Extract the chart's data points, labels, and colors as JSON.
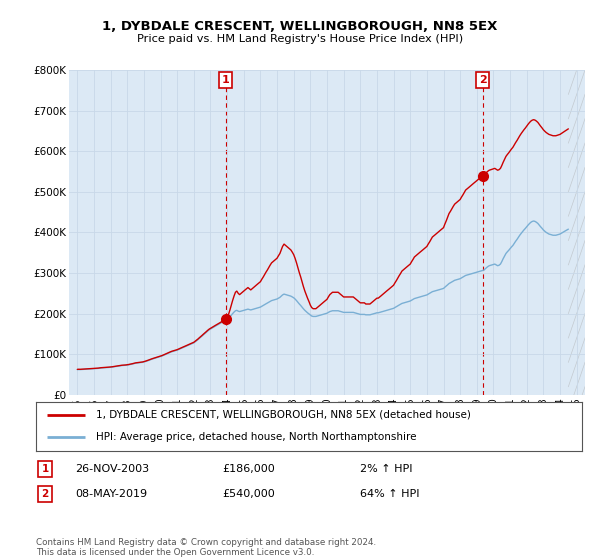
{
  "title": "1, DYBDALE CRESCENT, WELLINGBOROUGH, NN8 5EX",
  "subtitle": "Price paid vs. HM Land Registry's House Price Index (HPI)",
  "legend_line1": "1, DYBDALE CRESCENT, WELLINGBOROUGH, NN8 5EX (detached house)",
  "legend_line2": "HPI: Average price, detached house, North Northamptonshire",
  "annotation1_label": "1",
  "annotation1_date": "26-NOV-2003",
  "annotation1_price": "£186,000",
  "annotation1_hpi": "2% ↑ HPI",
  "annotation2_label": "2",
  "annotation2_date": "08-MAY-2019",
  "annotation2_price": "£540,000",
  "annotation2_hpi": "64% ↑ HPI",
  "footer": "Contains HM Land Registry data © Crown copyright and database right 2024.\nThis data is licensed under the Open Government Licence v3.0.",
  "background_color": "#ffffff",
  "plot_bg_color": "#dce9f5",
  "grid_color": "#c8d8e8",
  "red_line_color": "#cc0000",
  "blue_line_color": "#7aafd4",
  "annotation_vline_color": "#cc0000",
  "sale1_x": 2003.92,
  "sale1_y": 186000,
  "sale2_x": 2019.36,
  "sale2_y": 540000,
  "xlim_start": 1994.5,
  "xlim_end": 2025.5,
  "ylim_min": 0,
  "ylim_max": 800000,
  "yticks": [
    0,
    100000,
    200000,
    300000,
    400000,
    500000,
    600000,
    700000,
    800000
  ],
  "ytick_labels": [
    "£0",
    "£100K",
    "£200K",
    "£300K",
    "£400K",
    "£500K",
    "£600K",
    "£700K",
    "£800K"
  ],
  "xtick_years": [
    1995,
    1996,
    1997,
    1998,
    1999,
    2000,
    2001,
    2002,
    2003,
    2004,
    2005,
    2006,
    2007,
    2008,
    2009,
    2010,
    2011,
    2012,
    2013,
    2014,
    2015,
    2016,
    2017,
    2018,
    2019,
    2020,
    2021,
    2022,
    2023,
    2024,
    2025
  ],
  "hpi_data": [
    [
      1995.0,
      62000
    ],
    [
      1995.08,
      62200
    ],
    [
      1995.17,
      62100
    ],
    [
      1995.25,
      62300
    ],
    [
      1995.33,
      62500
    ],
    [
      1995.42,
      62800
    ],
    [
      1995.5,
      63000
    ],
    [
      1995.58,
      63200
    ],
    [
      1995.67,
      63500
    ],
    [
      1995.75,
      63300
    ],
    [
      1995.83,
      63600
    ],
    [
      1995.92,
      63800
    ],
    [
      1996.0,
      64000
    ],
    [
      1996.08,
      64300
    ],
    [
      1996.17,
      64600
    ],
    [
      1996.25,
      65000
    ],
    [
      1996.33,
      65500
    ],
    [
      1996.42,
      66000
    ],
    [
      1996.5,
      66200
    ],
    [
      1996.58,
      66500
    ],
    [
      1996.67,
      66800
    ],
    [
      1996.75,
      67000
    ],
    [
      1996.83,
      67200
    ],
    [
      1996.92,
      67500
    ],
    [
      1997.0,
      67800
    ],
    [
      1997.08,
      68200
    ],
    [
      1997.17,
      68800
    ],
    [
      1997.25,
      69500
    ],
    [
      1997.33,
      70000
    ],
    [
      1997.42,
      70500
    ],
    [
      1997.5,
      71000
    ],
    [
      1997.58,
      71500
    ],
    [
      1997.67,
      72000
    ],
    [
      1997.75,
      72200
    ],
    [
      1997.83,
      72500
    ],
    [
      1997.92,
      72800
    ],
    [
      1998.0,
      73200
    ],
    [
      1998.08,
      73800
    ],
    [
      1998.17,
      74500
    ],
    [
      1998.25,
      75200
    ],
    [
      1998.33,
      76000
    ],
    [
      1998.42,
      77000
    ],
    [
      1998.5,
      77800
    ],
    [
      1998.58,
      78200
    ],
    [
      1998.67,
      78600
    ],
    [
      1998.75,
      79000
    ],
    [
      1998.83,
      79500
    ],
    [
      1998.92,
      80000
    ],
    [
      1999.0,
      80800
    ],
    [
      1999.08,
      81800
    ],
    [
      1999.17,
      83000
    ],
    [
      1999.25,
      84200
    ],
    [
      1999.33,
      85500
    ],
    [
      1999.42,
      87000
    ],
    [
      1999.5,
      88000
    ],
    [
      1999.58,
      89000
    ],
    [
      1999.67,
      90000
    ],
    [
      1999.75,
      91000
    ],
    [
      1999.83,
      92000
    ],
    [
      1999.92,
      93000
    ],
    [
      2000.0,
      94000
    ],
    [
      2000.08,
      95500
    ],
    [
      2000.17,
      97000
    ],
    [
      2000.25,
      98500
    ],
    [
      2000.33,
      100000
    ],
    [
      2000.42,
      101500
    ],
    [
      2000.5,
      103000
    ],
    [
      2000.58,
      104500
    ],
    [
      2000.67,
      106000
    ],
    [
      2000.75,
      107000
    ],
    [
      2000.83,
      108000
    ],
    [
      2000.92,
      109000
    ],
    [
      2001.0,
      110000
    ],
    [
      2001.08,
      111500
    ],
    [
      2001.17,
      113000
    ],
    [
      2001.25,
      114500
    ],
    [
      2001.33,
      116000
    ],
    [
      2001.42,
      117500
    ],
    [
      2001.5,
      119000
    ],
    [
      2001.58,
      120500
    ],
    [
      2001.67,
      122000
    ],
    [
      2001.75,
      123500
    ],
    [
      2001.83,
      125000
    ],
    [
      2001.92,
      126500
    ],
    [
      2002.0,
      128000
    ],
    [
      2002.08,
      130500
    ],
    [
      2002.17,
      133000
    ],
    [
      2002.25,
      136000
    ],
    [
      2002.33,
      139000
    ],
    [
      2002.42,
      142000
    ],
    [
      2002.5,
      145000
    ],
    [
      2002.58,
      148000
    ],
    [
      2002.67,
      151000
    ],
    [
      2002.75,
      154000
    ],
    [
      2002.83,
      157000
    ],
    [
      2002.92,
      160000
    ],
    [
      2003.0,
      162000
    ],
    [
      2003.08,
      164000
    ],
    [
      2003.17,
      166000
    ],
    [
      2003.25,
      168000
    ],
    [
      2003.33,
      170000
    ],
    [
      2003.42,
      172000
    ],
    [
      2003.5,
      174000
    ],
    [
      2003.58,
      176000
    ],
    [
      2003.67,
      178000
    ],
    [
      2003.75,
      180000
    ],
    [
      2003.83,
      182000
    ],
    [
      2003.92,
      184000
    ],
    [
      2004.0,
      186000
    ],
    [
      2004.08,
      188000
    ],
    [
      2004.17,
      192000
    ],
    [
      2004.25,
      196000
    ],
    [
      2004.33,
      200000
    ],
    [
      2004.42,
      204000
    ],
    [
      2004.5,
      207000
    ],
    [
      2004.58,
      208000
    ],
    [
      2004.67,
      206000
    ],
    [
      2004.75,
      205000
    ],
    [
      2004.83,
      206000
    ],
    [
      2004.92,
      207000
    ],
    [
      2005.0,
      208000
    ],
    [
      2005.08,
      209000
    ],
    [
      2005.17,
      210000
    ],
    [
      2005.25,
      211000
    ],
    [
      2005.33,
      210000
    ],
    [
      2005.42,
      209000
    ],
    [
      2005.5,
      210000
    ],
    [
      2005.58,
      211000
    ],
    [
      2005.67,
      212000
    ],
    [
      2005.75,
      213000
    ],
    [
      2005.83,
      214000
    ],
    [
      2005.92,
      215000
    ],
    [
      2006.0,
      216000
    ],
    [
      2006.08,
      218000
    ],
    [
      2006.17,
      220000
    ],
    [
      2006.25,
      222000
    ],
    [
      2006.33,
      224000
    ],
    [
      2006.42,
      226000
    ],
    [
      2006.5,
      228000
    ],
    [
      2006.58,
      230000
    ],
    [
      2006.67,
      232000
    ],
    [
      2006.75,
      233000
    ],
    [
      2006.83,
      234000
    ],
    [
      2006.92,
      235000
    ],
    [
      2007.0,
      236000
    ],
    [
      2007.08,
      238000
    ],
    [
      2007.17,
      240000
    ],
    [
      2007.25,
      243000
    ],
    [
      2007.33,
      246000
    ],
    [
      2007.42,
      248000
    ],
    [
      2007.5,
      247000
    ],
    [
      2007.58,
      246000
    ],
    [
      2007.67,
      245000
    ],
    [
      2007.75,
      244000
    ],
    [
      2007.83,
      243000
    ],
    [
      2007.92,
      241000
    ],
    [
      2008.0,
      239000
    ],
    [
      2008.08,
      236000
    ],
    [
      2008.17,
      232000
    ],
    [
      2008.25,
      228000
    ],
    [
      2008.33,
      224000
    ],
    [
      2008.42,
      220000
    ],
    [
      2008.5,
      216000
    ],
    [
      2008.58,
      212000
    ],
    [
      2008.67,
      208000
    ],
    [
      2008.75,
      205000
    ],
    [
      2008.83,
      202000
    ],
    [
      2008.92,
      199000
    ],
    [
      2009.0,
      196000
    ],
    [
      2009.08,
      194000
    ],
    [
      2009.17,
      193000
    ],
    [
      2009.25,
      193000
    ],
    [
      2009.33,
      193000
    ],
    [
      2009.42,
      194000
    ],
    [
      2009.5,
      195000
    ],
    [
      2009.58,
      196000
    ],
    [
      2009.67,
      197000
    ],
    [
      2009.75,
      198000
    ],
    [
      2009.83,
      199000
    ],
    [
      2009.92,
      200000
    ],
    [
      2010.0,
      201000
    ],
    [
      2010.08,
      203000
    ],
    [
      2010.17,
      205000
    ],
    [
      2010.25,
      206000
    ],
    [
      2010.33,
      207000
    ],
    [
      2010.42,
      207000
    ],
    [
      2010.5,
      207000
    ],
    [
      2010.58,
      207000
    ],
    [
      2010.67,
      207000
    ],
    [
      2010.75,
      206000
    ],
    [
      2010.83,
      205000
    ],
    [
      2010.92,
      204000
    ],
    [
      2011.0,
      203000
    ],
    [
      2011.08,
      203000
    ],
    [
      2011.17,
      203000
    ],
    [
      2011.25,
      203000
    ],
    [
      2011.33,
      203000
    ],
    [
      2011.42,
      203000
    ],
    [
      2011.5,
      203000
    ],
    [
      2011.58,
      203000
    ],
    [
      2011.67,
      202000
    ],
    [
      2011.75,
      201000
    ],
    [
      2011.83,
      200000
    ],
    [
      2011.92,
      199000
    ],
    [
      2012.0,
      198000
    ],
    [
      2012.08,
      198000
    ],
    [
      2012.17,
      198000
    ],
    [
      2012.25,
      198000
    ],
    [
      2012.33,
      197000
    ],
    [
      2012.42,
      197000
    ],
    [
      2012.5,
      197000
    ],
    [
      2012.58,
      197000
    ],
    [
      2012.67,
      198000
    ],
    [
      2012.75,
      199000
    ],
    [
      2012.83,
      200000
    ],
    [
      2012.92,
      201000
    ],
    [
      2013.0,
      202000
    ],
    [
      2013.08,
      202000
    ],
    [
      2013.17,
      203000
    ],
    [
      2013.25,
      204000
    ],
    [
      2013.33,
      205000
    ],
    [
      2013.42,
      206000
    ],
    [
      2013.5,
      207000
    ],
    [
      2013.58,
      208000
    ],
    [
      2013.67,
      209000
    ],
    [
      2013.75,
      210000
    ],
    [
      2013.83,
      211000
    ],
    [
      2013.92,
      212000
    ],
    [
      2014.0,
      213000
    ],
    [
      2014.08,
      215000
    ],
    [
      2014.17,
      217000
    ],
    [
      2014.25,
      219000
    ],
    [
      2014.33,
      221000
    ],
    [
      2014.42,
      223000
    ],
    [
      2014.5,
      225000
    ],
    [
      2014.58,
      226000
    ],
    [
      2014.67,
      227000
    ],
    [
      2014.75,
      228000
    ],
    [
      2014.83,
      229000
    ],
    [
      2014.92,
      230000
    ],
    [
      2015.0,
      231000
    ],
    [
      2015.08,
      233000
    ],
    [
      2015.17,
      235000
    ],
    [
      2015.25,
      237000
    ],
    [
      2015.33,
      238000
    ],
    [
      2015.42,
      239000
    ],
    [
      2015.5,
      240000
    ],
    [
      2015.58,
      241000
    ],
    [
      2015.67,
      242000
    ],
    [
      2015.75,
      243000
    ],
    [
      2015.83,
      244000
    ],
    [
      2015.92,
      245000
    ],
    [
      2016.0,
      246000
    ],
    [
      2016.08,
      248000
    ],
    [
      2016.17,
      250000
    ],
    [
      2016.25,
      252000
    ],
    [
      2016.33,
      254000
    ],
    [
      2016.42,
      255000
    ],
    [
      2016.5,
      256000
    ],
    [
      2016.58,
      257000
    ],
    [
      2016.67,
      258000
    ],
    [
      2016.75,
      259000
    ],
    [
      2016.83,
      260000
    ],
    [
      2016.92,
      261000
    ],
    [
      2017.0,
      262000
    ],
    [
      2017.08,
      265000
    ],
    [
      2017.17,
      268000
    ],
    [
      2017.25,
      271000
    ],
    [
      2017.33,
      274000
    ],
    [
      2017.42,
      276000
    ],
    [
      2017.5,
      278000
    ],
    [
      2017.58,
      280000
    ],
    [
      2017.67,
      282000
    ],
    [
      2017.75,
      283000
    ],
    [
      2017.83,
      284000
    ],
    [
      2017.92,
      285000
    ],
    [
      2018.0,
      286000
    ],
    [
      2018.08,
      288000
    ],
    [
      2018.17,
      290000
    ],
    [
      2018.25,
      292000
    ],
    [
      2018.33,
      294000
    ],
    [
      2018.42,
      295000
    ],
    [
      2018.5,
      296000
    ],
    [
      2018.58,
      297000
    ],
    [
      2018.67,
      298000
    ],
    [
      2018.75,
      299000
    ],
    [
      2018.83,
      300000
    ],
    [
      2018.92,
      301000
    ],
    [
      2019.0,
      302000
    ],
    [
      2019.08,
      303000
    ],
    [
      2019.17,
      304000
    ],
    [
      2019.25,
      305000
    ],
    [
      2019.33,
      306000
    ],
    [
      2019.42,
      307000
    ],
    [
      2019.5,
      310000
    ],
    [
      2019.58,
      313000
    ],
    [
      2019.67,
      316000
    ],
    [
      2019.75,
      318000
    ],
    [
      2019.83,
      319000
    ],
    [
      2019.92,
      320000
    ],
    [
      2020.0,
      321000
    ],
    [
      2020.08,
      322000
    ],
    [
      2020.17,
      320000
    ],
    [
      2020.25,
      318000
    ],
    [
      2020.33,
      319000
    ],
    [
      2020.42,
      322000
    ],
    [
      2020.5,
      328000
    ],
    [
      2020.58,
      335000
    ],
    [
      2020.67,
      342000
    ],
    [
      2020.75,
      348000
    ],
    [
      2020.83,
      352000
    ],
    [
      2020.92,
      356000
    ],
    [
      2021.0,
      360000
    ],
    [
      2021.08,
      364000
    ],
    [
      2021.17,
      368000
    ],
    [
      2021.25,
      373000
    ],
    [
      2021.33,
      378000
    ],
    [
      2021.42,
      383000
    ],
    [
      2021.5,
      388000
    ],
    [
      2021.58,
      393000
    ],
    [
      2021.67,
      398000
    ],
    [
      2021.75,
      402000
    ],
    [
      2021.83,
      406000
    ],
    [
      2021.92,
      410000
    ],
    [
      2022.0,
      414000
    ],
    [
      2022.08,
      418000
    ],
    [
      2022.17,
      422000
    ],
    [
      2022.25,
      425000
    ],
    [
      2022.33,
      427000
    ],
    [
      2022.42,
      428000
    ],
    [
      2022.5,
      427000
    ],
    [
      2022.58,
      425000
    ],
    [
      2022.67,
      422000
    ],
    [
      2022.75,
      418000
    ],
    [
      2022.83,
      414000
    ],
    [
      2022.92,
      410000
    ],
    [
      2023.0,
      406000
    ],
    [
      2023.08,
      403000
    ],
    [
      2023.17,
      400000
    ],
    [
      2023.25,
      398000
    ],
    [
      2023.33,
      396000
    ],
    [
      2023.42,
      395000
    ],
    [
      2023.5,
      394000
    ],
    [
      2023.58,
      393000
    ],
    [
      2023.67,
      393000
    ],
    [
      2023.75,
      393000
    ],
    [
      2023.83,
      394000
    ],
    [
      2023.92,
      395000
    ],
    [
      2024.0,
      396000
    ],
    [
      2024.08,
      398000
    ],
    [
      2024.17,
      400000
    ],
    [
      2024.25,
      402000
    ],
    [
      2024.33,
      404000
    ],
    [
      2024.42,
      406000
    ],
    [
      2024.5,
      408000
    ]
  ]
}
